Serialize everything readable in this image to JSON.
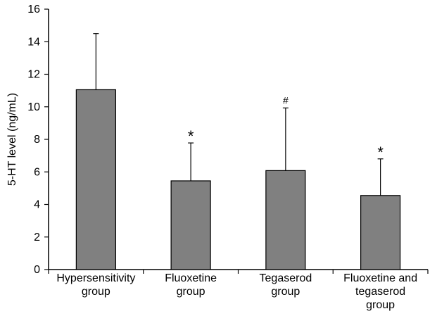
{
  "chart_data": {
    "type": "bar",
    "categories": [
      [
        "Hypersensitivity",
        "group"
      ],
      [
        "Fluoxetine",
        "group"
      ],
      [
        "Tegaserod",
        "group"
      ],
      [
        "Fluoxetine and",
        "tegaserod",
        "group"
      ]
    ],
    "values": [
      11.05,
      5.45,
      6.08,
      4.55
    ],
    "error_upper": [
      14.5,
      7.78,
      9.93,
      6.8
    ],
    "annotations": [
      "",
      "*",
      "#",
      "*"
    ],
    "title": "",
    "xlabel": "",
    "ylabel": "5-HT level (ng/mL)",
    "ylim": [
      0,
      16
    ],
    "yticks": [
      0,
      2,
      4,
      6,
      8,
      10,
      12,
      14,
      16
    ],
    "grid": false,
    "bar_color": "#808080",
    "edge_color": "#000000"
  }
}
